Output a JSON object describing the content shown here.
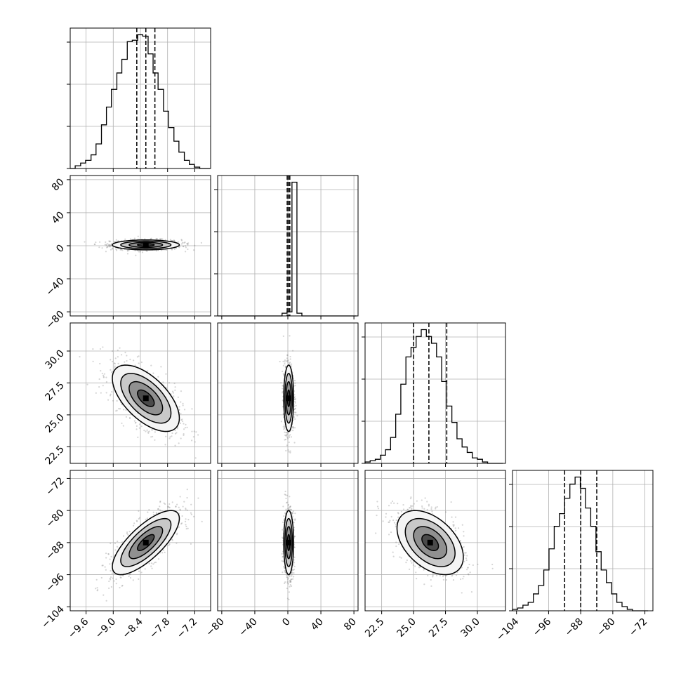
{
  "chart_data": {
    "type": "corner",
    "n_params": 4,
    "params": [
      {
        "range": [
          -9.95,
          -6.85
        ],
        "ticks": [
          -9.6,
          -9.0,
          -8.4,
          -7.8,
          -7.2
        ],
        "tick_labels": [
          "−9.6",
          "−9.0",
          "−8.4",
          "−7.8",
          "−7.2"
        ],
        "quantiles": [
          -8.48,
          -8.28,
          -8.08
        ],
        "hist_bins": [
          -9.95,
          -9.84,
          -9.72,
          -9.61,
          -9.49,
          -9.38,
          -9.26,
          -9.15,
          -9.04,
          -8.92,
          -8.81,
          -8.69,
          -8.58,
          -8.46,
          -8.35,
          -8.23,
          -8.12,
          -8.01,
          -7.89,
          -7.78,
          -7.66,
          -7.55,
          -7.43,
          -7.32,
          -7.21,
          -7.09,
          -6.98,
          -6.86
        ],
        "hist_values": [
          0,
          2,
          4,
          6,
          10,
          18,
          32,
          45,
          58,
          70,
          80,
          93,
          94,
          98,
          97,
          84,
          70,
          58,
          42,
          30,
          20,
          12,
          6,
          3,
          1,
          0,
          0
        ]
      },
      {
        "range": [
          -85,
          85
        ],
        "ticks": [
          -80,
          -40,
          0,
          40,
          80
        ],
        "tick_labels": [
          "−80",
          "−40",
          "0",
          "40",
          "80"
        ],
        "quantiles": [
          -0.8,
          0.8,
          2.4
        ],
        "hist_bins": [
          -85,
          -79,
          -73,
          -67,
          -61,
          -55,
          -49,
          -43,
          -37,
          -31,
          -25,
          -19,
          -13,
          -7,
          -1,
          5,
          11,
          17,
          23,
          29,
          35,
          41,
          47,
          53,
          59,
          65,
          71,
          77,
          83
        ],
        "hist_values": [
          0,
          0,
          0,
          0,
          0,
          0,
          0,
          0,
          0,
          0,
          0,
          0,
          0,
          2,
          3,
          99,
          2,
          0,
          0,
          0,
          0,
          0,
          0,
          0,
          0,
          0,
          0,
          0
        ]
      },
      {
        "range": [
          21.2,
          32.2
        ],
        "ticks": [
          22.5,
          25.0,
          27.5,
          30.0
        ],
        "tick_labels": [
          "22.5",
          "25.0",
          "27.5",
          "30.0"
        ],
        "quantiles": [
          25.0,
          26.2,
          27.6
        ],
        "hist_bins": [
          21.2,
          21.6,
          22.0,
          22.4,
          22.8,
          23.2,
          23.6,
          24.0,
          24.4,
          24.8,
          25.2,
          25.6,
          26.0,
          26.4,
          26.8,
          27.2,
          27.6,
          28.0,
          28.4,
          28.8,
          29.2,
          29.6,
          30.0,
          30.4,
          30.8,
          31.2,
          31.6,
          32.0
        ],
        "hist_values": [
          1,
          2,
          3,
          6,
          10,
          19,
          36,
          58,
          78,
          85,
          93,
          98,
          93,
          88,
          78,
          60,
          42,
          30,
          18,
          12,
          8,
          4,
          3,
          1,
          0,
          0,
          0
        ]
      },
      {
        "range": [
          -105,
          -70
        ],
        "ticks": [
          -104,
          -96,
          -88,
          -80,
          -72
        ],
        "tick_labels": [
          "−104",
          "−96",
          "−88",
          "−80",
          "−72"
        ],
        "quantiles": [
          -92.0,
          -88.0,
          -84.0
        ],
        "hist_bins": [
          -105.0,
          -103.7,
          -102.4,
          -101.1,
          -99.8,
          -98.5,
          -97.2,
          -95.9,
          -94.6,
          -93.3,
          -92.0,
          -90.7,
          -89.4,
          -88.1,
          -86.8,
          -85.5,
          -84.2,
          -82.9,
          -81.6,
          -80.3,
          -79.0,
          -77.7,
          -76.4,
          -75.1,
          -73.8,
          -72.5,
          -71.2
        ],
        "hist_values": [
          1,
          2,
          4,
          6,
          12,
          18,
          29,
          44,
          60,
          69,
          80,
          90,
          95,
          87,
          73,
          60,
          42,
          29,
          20,
          12,
          6,
          3,
          1,
          0,
          0,
          0
        ]
      }
    ],
    "pairs": [
      {
        "x": 0,
        "y": 1,
        "mean": [
          -8.28,
          1.0
        ],
        "sd": [
          0.37,
          3.0
        ],
        "rho": 0.0
      },
      {
        "x": 0,
        "y": 2,
        "mean": [
          -8.28,
          26.3
        ],
        "sd": [
          0.37,
          1.3
        ],
        "rho": -0.6
      },
      {
        "x": 1,
        "y": 2,
        "mean": [
          1.0,
          26.3
        ],
        "sd": [
          3.0,
          1.3
        ],
        "rho": 0.0
      },
      {
        "x": 0,
        "y": 3,
        "mean": [
          -8.28,
          -88.0
        ],
        "sd": [
          0.37,
          4.0
        ],
        "rho": 0.75
      },
      {
        "x": 1,
        "y": 3,
        "mean": [
          1.0,
          -88.0
        ],
        "sd": [
          3.0,
          4.0
        ],
        "rho": 0.0
      },
      {
        "x": 2,
        "y": 3,
        "mean": [
          26.3,
          -88.0
        ],
        "sd": [
          1.3,
          4.0
        ],
        "rho": -0.45
      }
    ],
    "contour_levels_sigma": [
      0.5,
      1.0,
      1.5,
      2.0
    ],
    "grid": true,
    "line_color": "#000000",
    "scatter_color": "#888888",
    "grid_color": "#b0b0b0"
  }
}
